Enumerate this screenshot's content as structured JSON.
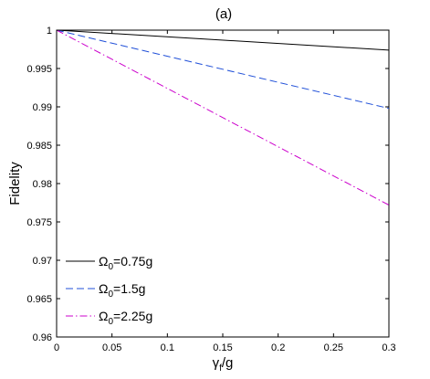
{
  "chart_data": {
    "type": "line",
    "title": "(a)",
    "xlabel": "γf/g",
    "xlabel_main": "γ",
    "xlabel_sub": "f",
    "xlabel_rest": "/g",
    "ylabel": "Fidelity",
    "xlim": [
      0,
      0.3
    ],
    "ylim": [
      0.96,
      1
    ],
    "x_ticks": [
      0,
      0.05,
      0.1,
      0.15,
      0.2,
      0.25,
      0.3
    ],
    "x_tick_labels": [
      "0",
      "0.05",
      "0.1",
      "0.15",
      "0.2",
      "0.25",
      "0.3"
    ],
    "y_ticks": [
      0.96,
      0.965,
      0.97,
      0.975,
      0.98,
      0.985,
      0.99,
      0.995,
      1
    ],
    "y_tick_labels": [
      "0.96",
      "0.965",
      "0.97",
      "0.975",
      "0.98",
      "0.985",
      "0.99",
      "0.995",
      "1"
    ],
    "grid": false,
    "legend_position": "bottom-left",
    "series": [
      {
        "name": "Ω0=0.75g",
        "name_main": "Ω",
        "name_sub": "0",
        "name_rest": "=0.75g",
        "color": "#000000",
        "dash": "solid",
        "x": [
          0,
          0.3
        ],
        "y": [
          1.0,
          0.9974
        ]
      },
      {
        "name": "Ω0=1.5g",
        "name_main": "Ω",
        "name_sub": "0",
        "name_rest": "=1.5g",
        "color": "#1f4fd8",
        "dash": "dashed",
        "x": [
          0,
          0.3
        ],
        "y": [
          1.0,
          0.9898
        ]
      },
      {
        "name": "Ω0=2.25g",
        "name_main": "Ω",
        "name_sub": "0",
        "name_rest": "=2.25g",
        "color": "#cc00cc",
        "dash": "dashdot",
        "x": [
          0,
          0.3
        ],
        "y": [
          1.0,
          0.9772
        ]
      }
    ]
  }
}
